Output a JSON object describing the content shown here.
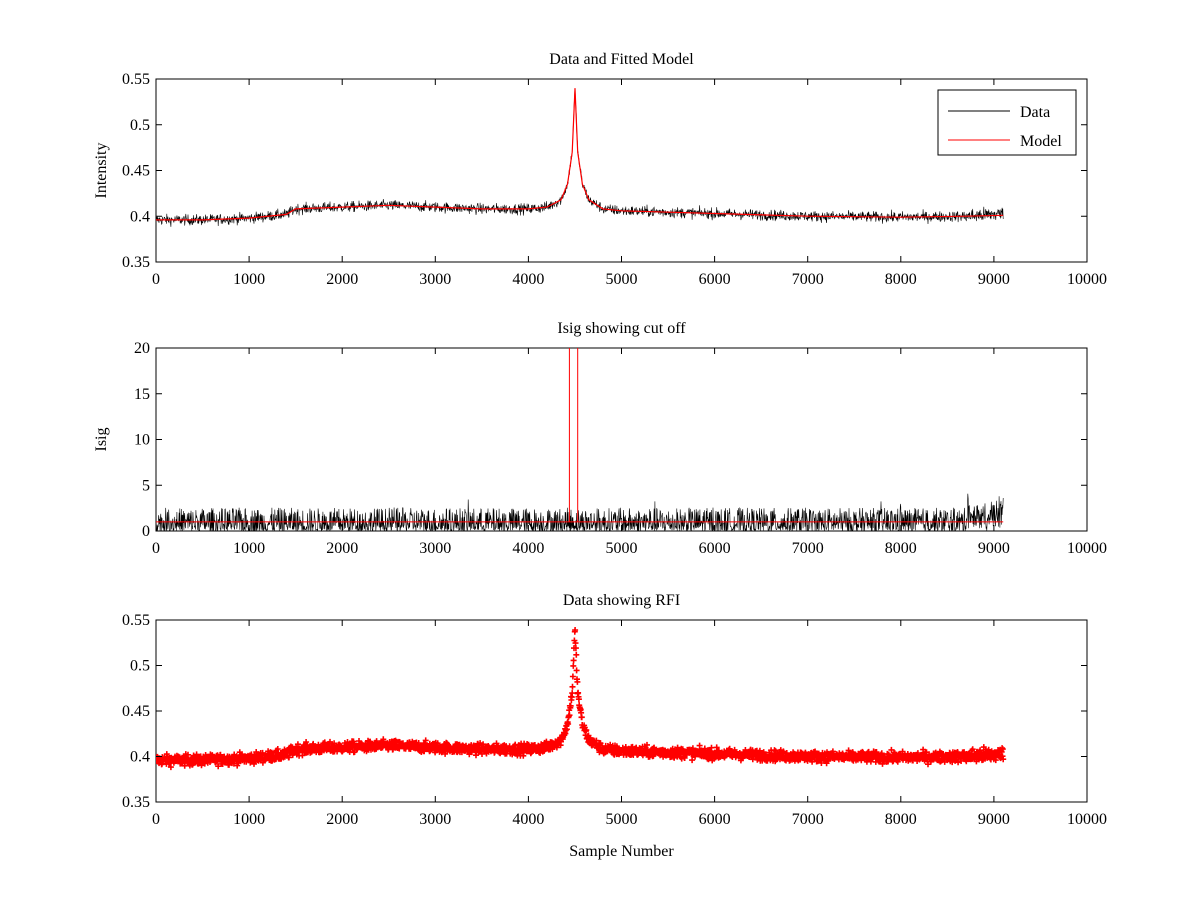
{
  "chart_data": [
    {
      "type": "line",
      "title": "Data and Fitted Model",
      "xlabel": "",
      "ylabel": "Intensity",
      "xlim": [
        0,
        10000
      ],
      "ylim": [
        0.35,
        0.55
      ],
      "xticks": [
        0,
        1000,
        2000,
        3000,
        4000,
        5000,
        6000,
        7000,
        8000,
        9000,
        10000
      ],
      "yticks": [
        0.35,
        0.4,
        0.45,
        0.5,
        0.55
      ],
      "xticklabels": [
        "0",
        "1000",
        "2000",
        "3000",
        "4000",
        "5000",
        "6000",
        "7000",
        "8000",
        "9000",
        "10000"
      ],
      "yticklabels": [
        "0.35",
        "0.4",
        "0.45",
        "0.5",
        "0.55"
      ],
      "legend": {
        "position": "top-right",
        "entries": [
          "Data",
          "Model"
        ]
      },
      "series": [
        {
          "name": "Data",
          "color": "#000000",
          "style": "line",
          "x_range": [
            0,
            9100
          ],
          "noise_amplitude": 0.01,
          "baseline": [
            [
              0,
              0.396
            ],
            [
              500,
              0.396
            ],
            [
              1000,
              0.398
            ],
            [
              1400,
              0.402
            ],
            [
              1500,
              0.408
            ],
            [
              2000,
              0.41
            ],
            [
              2500,
              0.412
            ],
            [
              3000,
              0.41
            ],
            [
              3500,
              0.408
            ],
            [
              4000,
              0.408
            ],
            [
              4200,
              0.41
            ],
            [
              4350,
              0.418
            ],
            [
              4420,
              0.435
            ],
            [
              4470,
              0.47
            ],
            [
              4500,
              0.54
            ],
            [
              4530,
              0.47
            ],
            [
              4580,
              0.435
            ],
            [
              4650,
              0.418
            ],
            [
              4800,
              0.408
            ],
            [
              5000,
              0.406
            ],
            [
              6000,
              0.403
            ],
            [
              7000,
              0.4
            ],
            [
              8000,
              0.399
            ],
            [
              8700,
              0.4
            ],
            [
              9100,
              0.403
            ]
          ]
        },
        {
          "name": "Model",
          "color": "#ff0000",
          "style": "line",
          "x": [
            0,
            500,
            1000,
            1400,
            1500,
            2000,
            2500,
            3000,
            3500,
            4000,
            4200,
            4350,
            4420,
            4470,
            4500,
            4530,
            4580,
            4650,
            4800,
            5000,
            6000,
            7000,
            8000,
            8700,
            9100
          ],
          "y": [
            0.396,
            0.396,
            0.398,
            0.402,
            0.408,
            0.41,
            0.412,
            0.41,
            0.408,
            0.408,
            0.41,
            0.418,
            0.435,
            0.47,
            0.54,
            0.47,
            0.435,
            0.418,
            0.408,
            0.406,
            0.403,
            0.4,
            0.399,
            0.4,
            0.401
          ]
        }
      ]
    },
    {
      "type": "line",
      "title": "Isig showing cut off",
      "xlabel": "",
      "ylabel": "Isig",
      "xlim": [
        0,
        10000
      ],
      "ylim": [
        0,
        20
      ],
      "xticks": [
        0,
        1000,
        2000,
        3000,
        4000,
        5000,
        6000,
        7000,
        8000,
        9000,
        10000
      ],
      "yticks": [
        0,
        5,
        10,
        15,
        20
      ],
      "xticklabels": [
        "0",
        "1000",
        "2000",
        "3000",
        "4000",
        "5000",
        "6000",
        "7000",
        "8000",
        "9000",
        "10000"
      ],
      "yticklabels": [
        "0",
        "5",
        "10",
        "15",
        "20"
      ],
      "series": [
        {
          "color": "#000000",
          "style": "line",
          "x_range": [
            0,
            9100
          ],
          "typical_max": 3,
          "burst_region": [
            8700,
            9100
          ],
          "burst_max": 5.8
        },
        {
          "color": "#ff0000",
          "style": "line",
          "x": [
            0,
            4440,
            4440,
            4440,
            4530,
            4530,
            4530,
            9100
          ],
          "y": [
            1,
            1,
            20,
            1,
            1,
            20,
            1,
            1
          ]
        }
      ]
    },
    {
      "type": "scatter",
      "title": "Data showing RFI",
      "xlabel": "Sample Number",
      "ylabel": "",
      "xlim": [
        0,
        10000
      ],
      "ylim": [
        0.35,
        0.55
      ],
      "xticks": [
        0,
        1000,
        2000,
        3000,
        4000,
        5000,
        6000,
        7000,
        8000,
        9000,
        10000
      ],
      "yticks": [
        0.35,
        0.4,
        0.45,
        0.5,
        0.55
      ],
      "xticklabels": [
        "0",
        "1000",
        "2000",
        "3000",
        "4000",
        "5000",
        "6000",
        "7000",
        "8000",
        "9000",
        "10000"
      ],
      "yticklabels": [
        "0.35",
        "0.4",
        "0.45",
        "0.5",
        "0.55"
      ],
      "series": [
        {
          "color": "#ff0000",
          "style": "markers",
          "x_range": [
            0,
            9100
          ],
          "same_as_panel": 0
        }
      ]
    }
  ]
}
